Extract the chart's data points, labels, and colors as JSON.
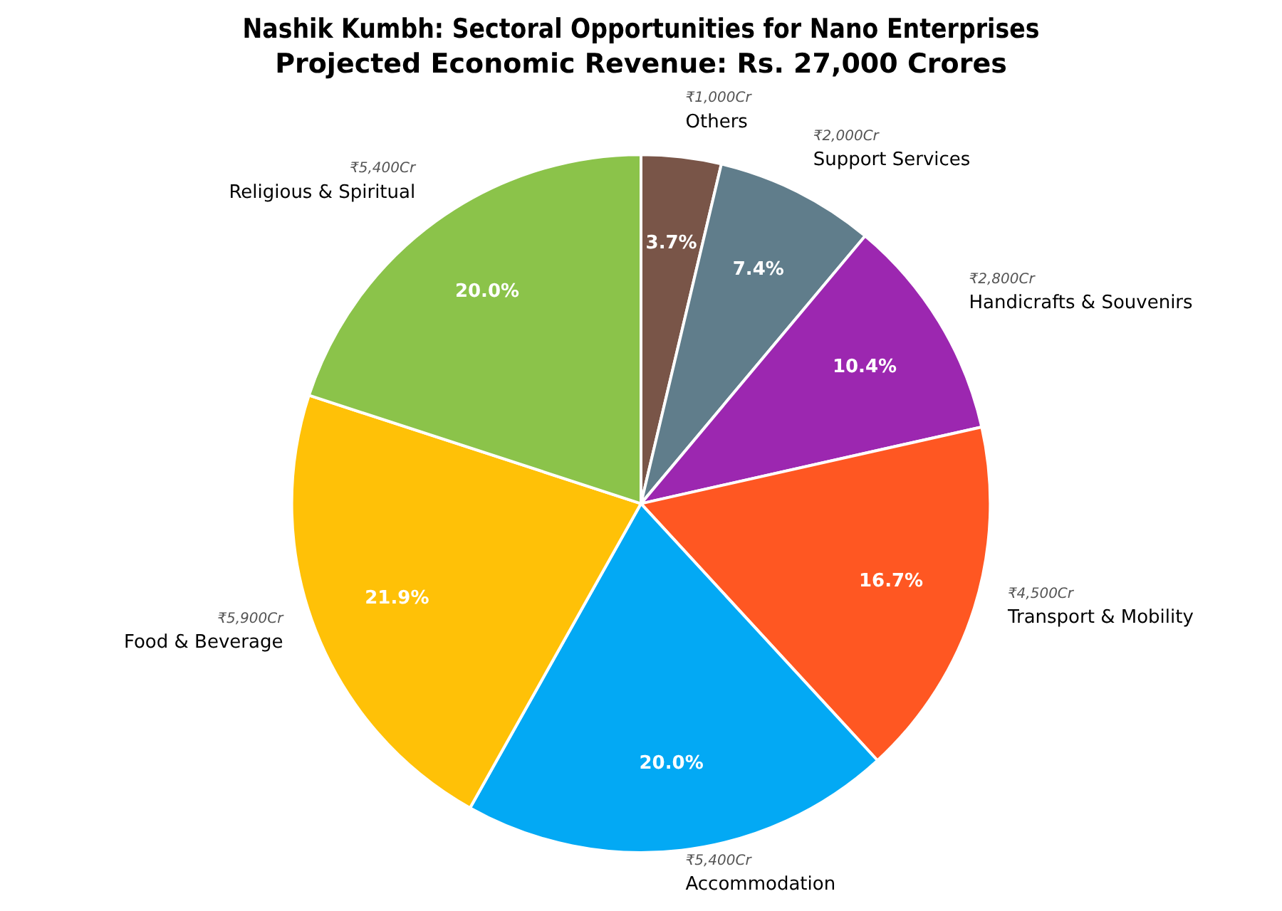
{
  "chart_data": {
    "type": "pie",
    "title": "Nashik Kumbh: Sectoral Opportunities for Nano Enterprises",
    "subtitle": "Projected Economic Revenue: Rs. 27,000 Crores",
    "categories": [
      "Others",
      "Support Services",
      "Handicrafts & Souvenirs",
      "Transport & Mobility",
      "Accommodation",
      "Food & Beverage",
      "Religious & Spiritual"
    ],
    "values": [
      3.7,
      7.4,
      10.4,
      16.7,
      20.0,
      21.9,
      20.0
    ],
    "colors": [
      "#795548",
      "#607d8b",
      "#9c27b0",
      "#ff5722",
      "#03a9f4",
      "#ffc107",
      "#8bc34a"
    ],
    "value_labels": [
      "3.7%",
      "7.4%",
      "10.4%",
      "16.7%",
      "20.0%",
      "21.9%",
      "20.0%"
    ],
    "annotations": [
      {
        "text": "₹1,000Cr",
        "x": "Others"
      },
      {
        "text": "₹2,000Cr",
        "x": "Support Services"
      },
      {
        "text": "₹2,800Cr",
        "x": "Handicrafts & Souvenirs"
      },
      {
        "text": "₹4,500Cr",
        "x": "Transport & Mobility"
      },
      {
        "text": "₹5,400Cr",
        "x": "Accommodation"
      },
      {
        "text": "₹5,900Cr",
        "x": "Food & Beverage"
      },
      {
        "text": "₹5,400Cr",
        "x": "Religious & Spiritual"
      }
    ]
  }
}
